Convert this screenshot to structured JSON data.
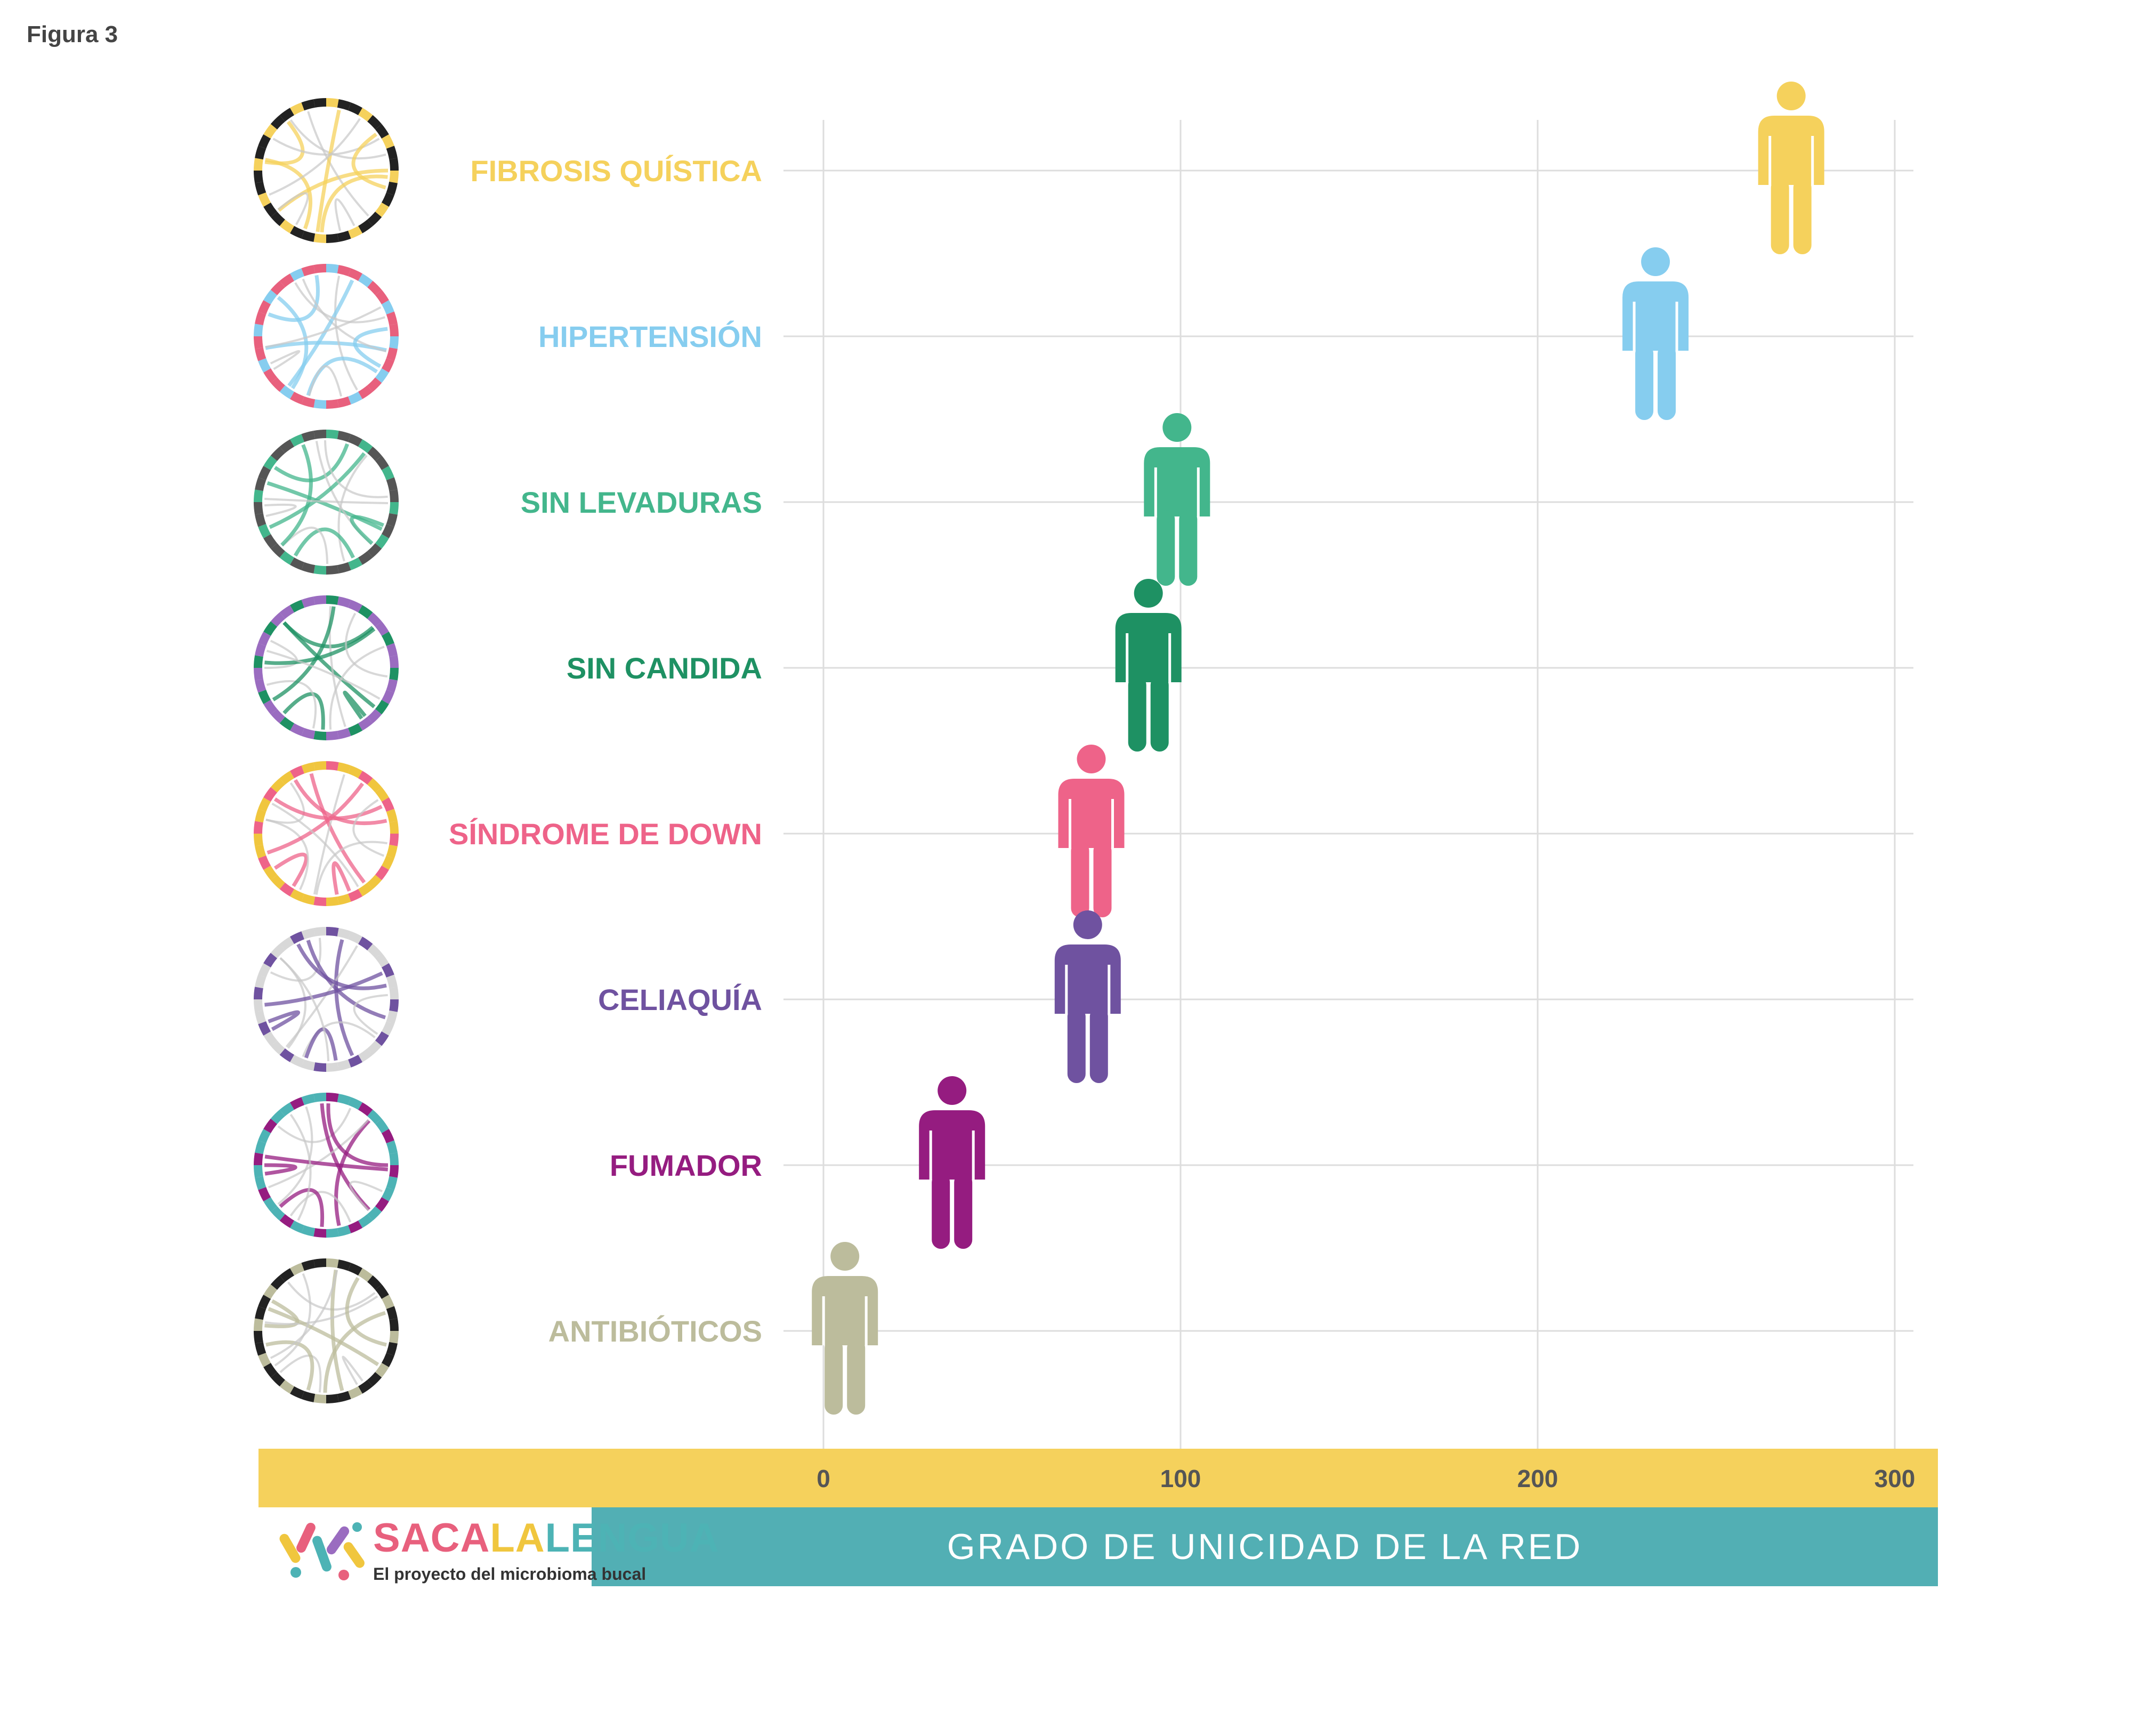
{
  "figure_label": "Figura 3",
  "chart_data": {
    "type": "scatter",
    "xlabel": "GRADO DE UNICIDAD DE LA RED",
    "ylabel": "",
    "xlim": [
      0,
      300
    ],
    "xticks": [
      0,
      100,
      200,
      300
    ],
    "grid": true,
    "marker": "person-icon",
    "points": [
      {
        "category": "FIBROSIS QUÍSTICA",
        "x": 271,
        "color": "#f5d15c"
      },
      {
        "category": "HIPERTENSIÓN",
        "x": 233,
        "color": "#86cdef"
      },
      {
        "category": "SIN LEVADURAS",
        "x": 99,
        "color": "#43b68c"
      },
      {
        "category": "SIN CANDIDA",
        "x": 91,
        "color": "#1e9163"
      },
      {
        "category": "SÍNDROME DE DOWN",
        "x": 75,
        "color": "#ee6389"
      },
      {
        "category": "CELIAQUÍA",
        "x": 74,
        "color": "#6f52a0"
      },
      {
        "category": "FUMADOR",
        "x": 36,
        "color": "#951c80"
      },
      {
        "category": "ANTIBIÓTICOS",
        "x": 6,
        "color": "#bcbc9c"
      }
    ]
  },
  "colors": {
    "axis_band": "#f5d15c",
    "xlabel_band": "#52afb4",
    "grid": "#dddddd",
    "tick_text": "#555555"
  },
  "logo": {
    "parts": [
      "SACA",
      "LA",
      "LENGUA"
    ],
    "subtitle": "El proyecto del microbioma bucal"
  }
}
